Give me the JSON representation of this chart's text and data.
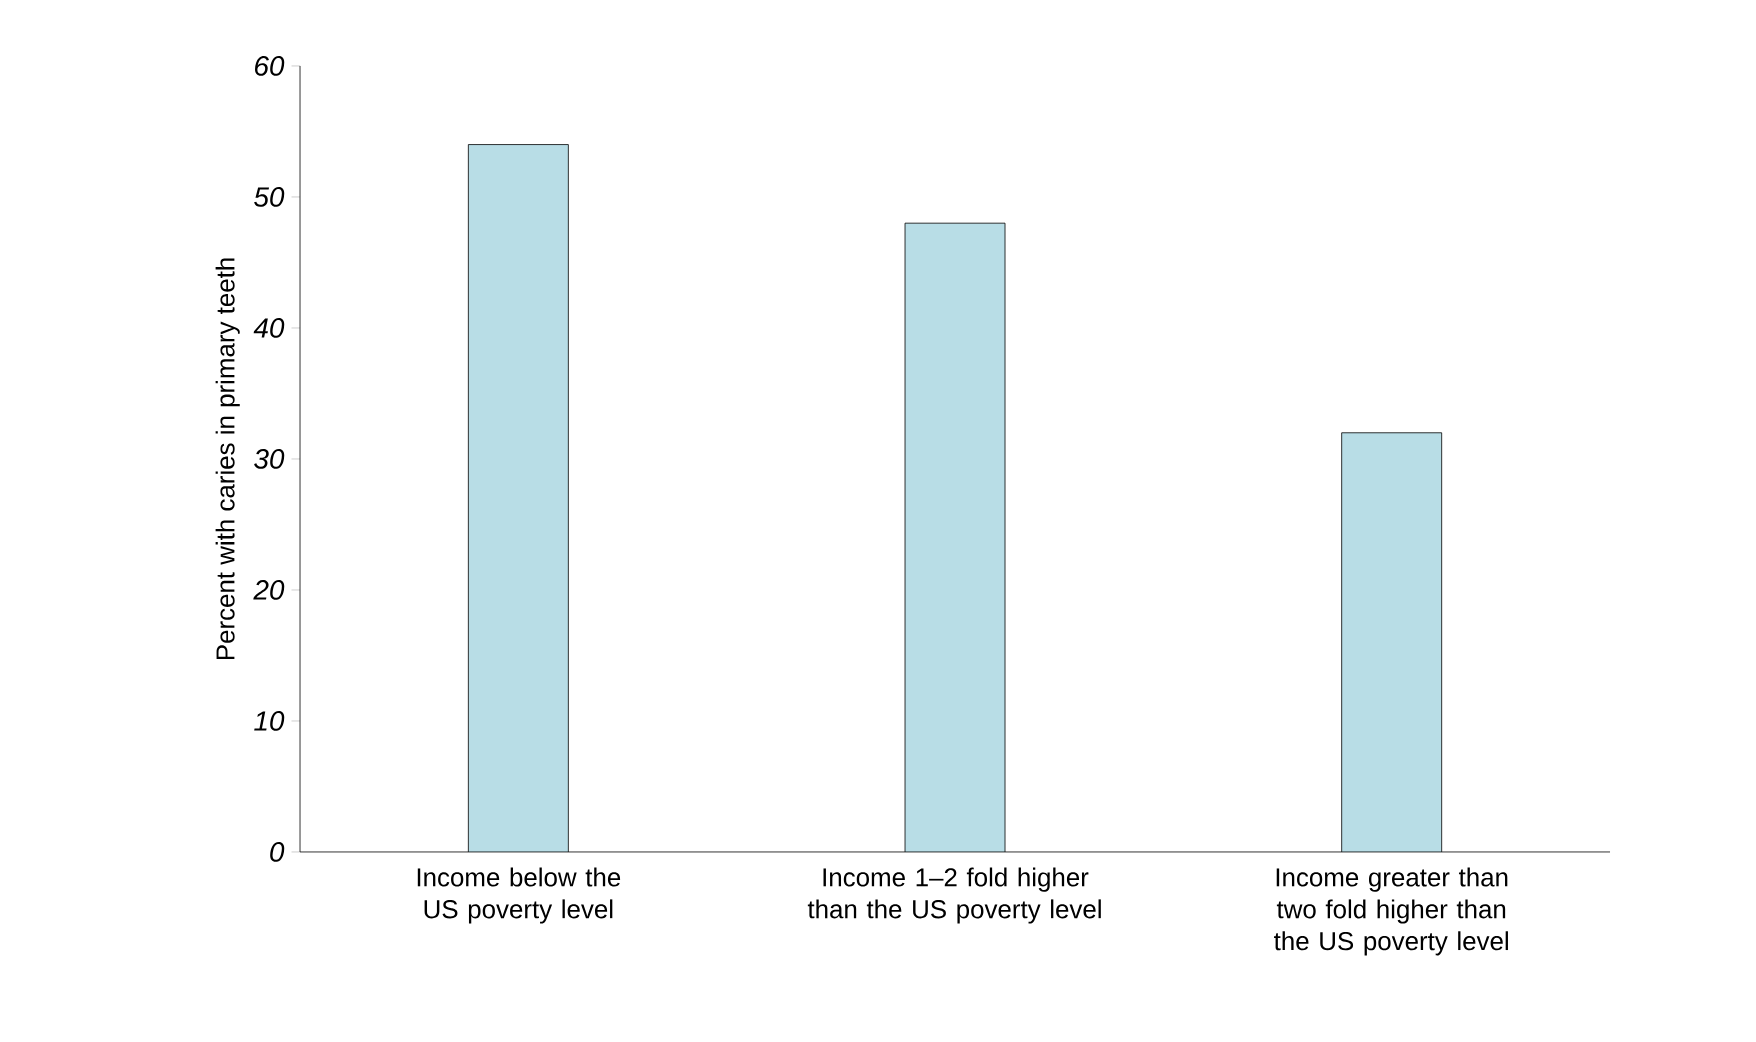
{
  "chart_data": {
    "type": "bar",
    "ylabel": "Percent with caries in primary teeth",
    "categories": [
      "Income below the US poverty level",
      "Income 1–2 fold higher than the US poverty level",
      "Income greater than two fold higher than the US poverty level"
    ],
    "values": [
      54,
      48,
      32
    ],
    "color": "#b8dde6",
    "ylim": [
      0,
      60
    ],
    "yticks": [
      0,
      10,
      20,
      30,
      40,
      50,
      60
    ],
    "grid": false
  }
}
